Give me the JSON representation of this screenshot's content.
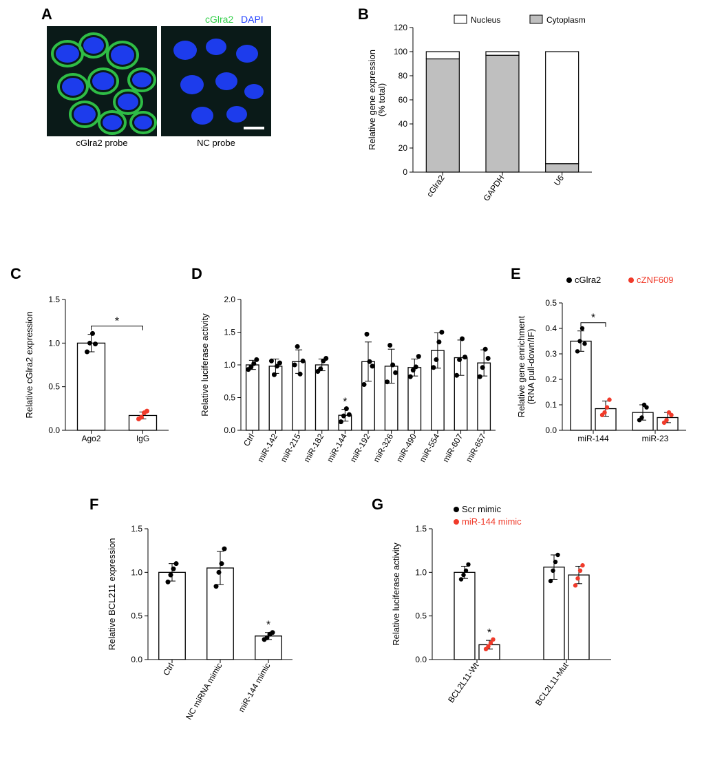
{
  "colors": {
    "black": "#000000",
    "red": "#f03a2a",
    "grey": "#bfbfbf",
    "white_fill": "#ffffff",
    "green": "#34cf4b",
    "blue": "#1f3fff",
    "dark_cyto": "#0a1a18"
  },
  "panelA": {
    "label": "A",
    "overlay_left": "cGlra2",
    "overlay_right": "DAPI",
    "img_left_caption": "cGlra2 probe",
    "img_right_caption": "NC probe"
  },
  "panelB": {
    "label": "B",
    "type": "stacked-bar",
    "y_title": "Relative gene expression\n(% total)",
    "ylim_min": 0,
    "ylim_max": 120,
    "ytick_step": 20,
    "legend": [
      {
        "name": "Nucleus",
        "color": "#ffffff"
      },
      {
        "name": "Cytoplasm",
        "color": "#bfbfbf"
      }
    ],
    "categories": [
      "cGlra2",
      "GAPDH",
      "U6"
    ],
    "cytoplasm": [
      94,
      97,
      7
    ],
    "nucleus": [
      6,
      3,
      93
    ]
  },
  "panelC": {
    "label": "C",
    "type": "bar-scatter",
    "y_title": "Relative cGlra2 expression",
    "ylim_min": 0,
    "ylim_max": 1.5,
    "ytick_step": 0.5,
    "categories": [
      "Ago2",
      "IgG"
    ],
    "means": [
      1.0,
      0.17
    ],
    "sd": [
      0.1,
      0.04
    ],
    "points": [
      [
        0.9,
        1.0,
        1.11,
        0.99
      ],
      [
        0.13,
        0.15,
        0.2,
        0.22
      ]
    ],
    "point_colors": [
      "#000000",
      "#f03a2a"
    ],
    "sig": {
      "between": [
        0,
        1
      ],
      "label": "*"
    }
  },
  "panelD": {
    "label": "D",
    "type": "bar-scatter",
    "y_title": "Relative luciferase activity",
    "ylim_min": 0,
    "ylim_max": 2.0,
    "ytick_step": 0.5,
    "categories": [
      "Ctrl",
      "miR-142",
      "miR-215",
      "miR-182",
      "miR-144",
      "miR-192",
      "miR-326",
      "miR-490",
      "miR-554",
      "miR-607",
      "miR-657"
    ],
    "means": [
      1.0,
      0.98,
      1.05,
      1.0,
      0.23,
      1.05,
      0.98,
      0.96,
      1.22,
      1.11,
      1.03
    ],
    "sd": [
      0.07,
      0.11,
      0.18,
      0.09,
      0.09,
      0.3,
      0.26,
      0.13,
      0.27,
      0.27,
      0.2
    ],
    "points": [
      [
        0.93,
        0.97,
        1.02,
        1.08
      ],
      [
        1.06,
        0.85,
        0.98,
        1.03
      ],
      [
        1.0,
        1.28,
        0.86,
        1.06
      ],
      [
        0.9,
        0.94,
        1.06,
        1.1
      ],
      [
        0.13,
        0.22,
        0.33,
        0.24
      ],
      [
        0.7,
        1.47,
        1.05,
        0.98
      ],
      [
        0.74,
        1.3,
        1.0,
        0.88
      ],
      [
        0.82,
        0.92,
        0.97,
        1.13
      ],
      [
        0.96,
        1.08,
        1.35,
        1.5
      ],
      [
        0.84,
        1.08,
        1.4,
        1.12
      ],
      [
        0.82,
        0.96,
        1.24,
        1.1
      ]
    ],
    "point_colors": [
      "#000000",
      "#000000",
      "#000000",
      "#000000",
      "#000000",
      "#000000",
      "#000000",
      "#000000",
      "#000000",
      "#000000",
      "#000000"
    ],
    "sig_index": 4,
    "sig_label": "*"
  },
  "panelE": {
    "label": "E",
    "type": "grouped-bar-scatter",
    "y_title": "Relative gene enrichment\n(RNA pull-down/IF)",
    "ylim_min": 0,
    "ylim_max": 0.5,
    "ytick_step": 0.1,
    "groups": [
      "miR-144",
      "miR-23"
    ],
    "series": [
      {
        "name": "cGlra2",
        "color": "#000000",
        "means": [
          0.35,
          0.07
        ],
        "sd": [
          0.04,
          0.03
        ],
        "points": [
          [
            0.31,
            0.35,
            0.4,
            0.34
          ],
          [
            0.04,
            0.05,
            0.1,
            0.09
          ]
        ]
      },
      {
        "name": "cZNF609",
        "color": "#f03a2a",
        "means": [
          0.085,
          0.05
        ],
        "sd": [
          0.03,
          0.02
        ],
        "points": [
          [
            0.06,
            0.07,
            0.09,
            0.12
          ],
          [
            0.03,
            0.04,
            0.07,
            0.06
          ]
        ]
      }
    ],
    "sig": {
      "group": 0,
      "label": "*"
    }
  },
  "panelF": {
    "label": "F",
    "type": "bar-scatter",
    "y_title": "Relative BCL211 expression",
    "ylim_min": 0,
    "ylim_max": 1.5,
    "ytick_step": 0.5,
    "categories": [
      "Ctrl",
      "NC miRNA mimic",
      "miR-144 mimic"
    ],
    "means": [
      1.0,
      1.05,
      0.27
    ],
    "sd": [
      0.1,
      0.19,
      0.04
    ],
    "points": [
      [
        0.89,
        0.97,
        1.04,
        1.1
      ],
      [
        0.84,
        1.0,
        1.1,
        1.27
      ],
      [
        0.23,
        0.25,
        0.29,
        0.31
      ]
    ],
    "point_colors": [
      "#000000",
      "#000000",
      "#000000"
    ],
    "sig_index": 2,
    "sig_label": "*"
  },
  "panelG": {
    "label": "G",
    "type": "grouped-bar-scatter",
    "y_title": "Relative luciferase activity",
    "ylim_min": 0,
    "ylim_max": 1.5,
    "ytick_step": 0.5,
    "groups": [
      "BCL2L11-Wt",
      "BCL2L11-Mut"
    ],
    "series": [
      {
        "name": "Scr mimic",
        "color": "#000000",
        "means": [
          1.0,
          1.06
        ],
        "sd": [
          0.07,
          0.14
        ],
        "points": [
          [
            0.92,
            0.97,
            1.02,
            1.09
          ],
          [
            0.9,
            1.02,
            1.12,
            1.2
          ]
        ]
      },
      {
        "name": "miR-144 mimic",
        "color": "#f03a2a",
        "means": [
          0.17,
          0.97
        ],
        "sd": [
          0.05,
          0.1
        ],
        "points": [
          [
            0.12,
            0.15,
            0.19,
            0.23
          ],
          [
            0.85,
            0.93,
            1.02,
            1.08
          ]
        ]
      }
    ],
    "sig": {
      "group": 0,
      "series": 1,
      "label": "*"
    }
  }
}
